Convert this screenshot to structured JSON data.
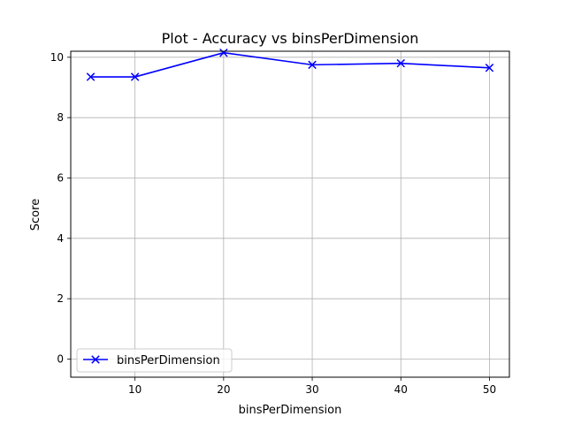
{
  "chart_data": {
    "type": "line",
    "title": "Plot - Accuracy vs binsPerDimension",
    "xlabel": "binsPerDimension",
    "ylabel": "Score",
    "xlim": [
      2.75,
      52.25
    ],
    "ylim": [
      -0.6,
      10.2
    ],
    "xticks": [
      10,
      20,
      30,
      40,
      50
    ],
    "yticks": [
      0,
      2,
      4,
      6,
      8,
      10
    ],
    "grid": true,
    "legend_position": "lower-left",
    "series": [
      {
        "name": "binsPerDimension",
        "color": "#0000ff",
        "marker": "x",
        "x": [
          5,
          10,
          20,
          30,
          40,
          50
        ],
        "y": [
          9.35,
          9.35,
          10.15,
          9.75,
          9.8,
          9.65
        ]
      }
    ]
  }
}
